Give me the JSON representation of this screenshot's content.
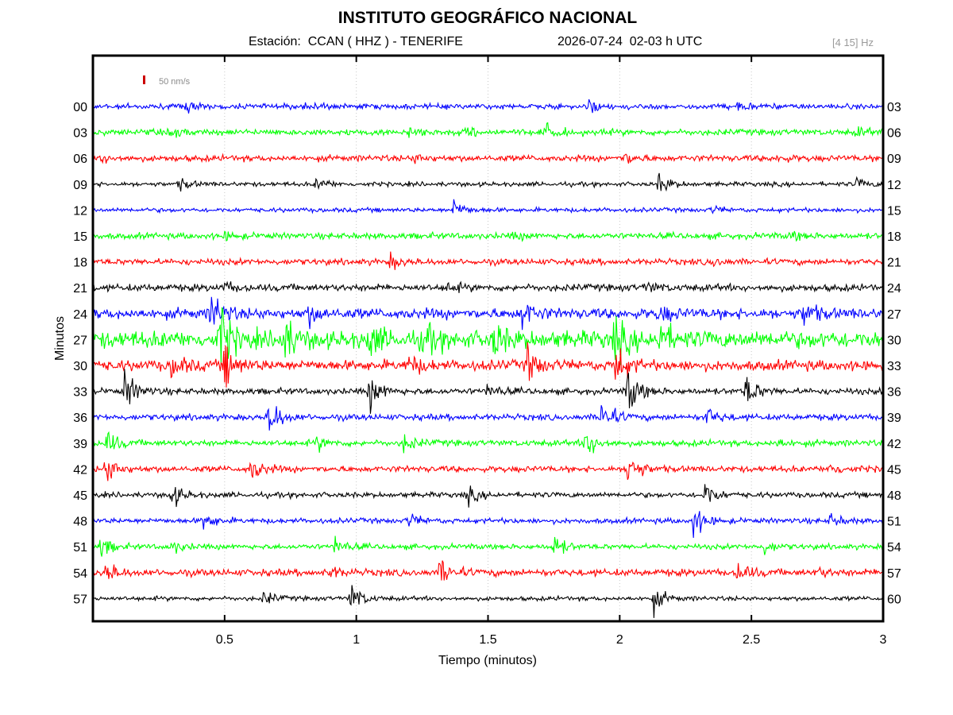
{
  "header": {
    "title": "INSTITUTO GEOGRÁFICO NACIONAL",
    "station": "Estación:  CCAN ( HHZ ) - TENERIFE",
    "datetime": "2026-07-24  02-03 h UTC",
    "band": "[4 15] Hz"
  },
  "chart_data": {
    "type": "line",
    "title": "INSTITUTO GEOGRÁFICO NACIONAL",
    "xlabel": "Tiempo (minutos)",
    "ylabel": "Minutos",
    "xlim": [
      0,
      3
    ],
    "x_ticks": [
      "0.5",
      "1",
      "1.5",
      "2",
      "2.5",
      "3"
    ],
    "x_tick_values": [
      0.5,
      1,
      1.5,
      2,
      2.5,
      3
    ],
    "scale_label": "50 nm/s",
    "scale_color": "#cc0000",
    "grid": "vertical dotted at x ticks",
    "trace_colors": [
      "#0000ff",
      "#00ff00",
      "#ff0000",
      "#000000"
    ],
    "rows": [
      {
        "left": "00",
        "right": "03",
        "noise": 3,
        "events": [
          [
            0.35,
            7
          ],
          [
            0.8,
            6
          ],
          [
            1.88,
            7
          ],
          [
            2.45,
            5
          ]
        ]
      },
      {
        "left": "03",
        "right": "06",
        "noise": 3.5,
        "events": [
          [
            0.3,
            5
          ],
          [
            1.2,
            5
          ],
          [
            1.42,
            6
          ],
          [
            1.72,
            10
          ],
          [
            2.9,
            5
          ]
        ]
      },
      {
        "left": "06",
        "right": "09",
        "noise": 3.5,
        "events": [
          [
            0.03,
            5
          ],
          [
            1.22,
            5
          ],
          [
            2.02,
            7
          ],
          [
            2.6,
            4
          ]
        ]
      },
      {
        "left": "09",
        "right": "12",
        "noise": 2.5,
        "events": [
          [
            0.33,
            7
          ],
          [
            0.85,
            8
          ],
          [
            2.15,
            12
          ],
          [
            2.9,
            6
          ]
        ]
      },
      {
        "left": "12",
        "right": "15",
        "noise": 2.5,
        "events": [
          [
            1.37,
            12
          ],
          [
            2.35,
            4
          ]
        ]
      },
      {
        "left": "15",
        "right": "18",
        "noise": 3.5,
        "events": [
          [
            0.5,
            4
          ],
          [
            1.6,
            4
          ],
          [
            2.65,
            5
          ]
        ]
      },
      {
        "left": "18",
        "right": "21",
        "noise": 3.5,
        "events": [
          [
            1.13,
            8
          ],
          [
            2.35,
            4
          ]
        ]
      },
      {
        "left": "21",
        "right": "24",
        "noise": 4,
        "events": [
          [
            0.5,
            6
          ],
          [
            1.35,
            5
          ],
          [
            2.1,
            6
          ]
        ]
      },
      {
        "left": "24",
        "right": "27",
        "noise": 6,
        "events": [
          [
            0.45,
            25
          ],
          [
            0.82,
            12
          ],
          [
            1.63,
            18
          ],
          [
            2.15,
            10
          ],
          [
            2.7,
            15
          ]
        ]
      },
      {
        "left": "27",
        "right": "30",
        "noise": 10,
        "events": [
          [
            0.48,
            40
          ],
          [
            0.72,
            30
          ],
          [
            1.05,
            20
          ],
          [
            1.25,
            20
          ],
          [
            1.52,
            20
          ],
          [
            1.98,
            25
          ],
          [
            2.15,
            18
          ]
        ]
      },
      {
        "left": "30",
        "right": "33",
        "noise": 6,
        "events": [
          [
            0.5,
            25
          ],
          [
            0.3,
            15
          ],
          [
            1.2,
            12
          ],
          [
            1.65,
            20
          ],
          [
            1.98,
            30
          ]
        ]
      },
      {
        "left": "33",
        "right": "36",
        "noise": 3.5,
        "events": [
          [
            0.12,
            25
          ],
          [
            1.05,
            22
          ],
          [
            2.03,
            30
          ],
          [
            2.48,
            20
          ],
          [
            1.5,
            8
          ]
        ]
      },
      {
        "left": "36",
        "right": "39",
        "noise": 3.5,
        "events": [
          [
            0.67,
            25
          ],
          [
            1.93,
            25
          ],
          [
            2.33,
            12
          ]
        ]
      },
      {
        "left": "39",
        "right": "42",
        "noise": 3.5,
        "events": [
          [
            0.05,
            15
          ],
          [
            0.85,
            8
          ],
          [
            1.18,
            10
          ],
          [
            1.87,
            20
          ],
          [
            2.6,
            5
          ]
        ]
      },
      {
        "left": "42",
        "right": "45",
        "noise": 3.5,
        "events": [
          [
            0.05,
            18
          ],
          [
            0.6,
            15
          ],
          [
            2.03,
            25
          ],
          [
            2.8,
            8
          ]
        ]
      },
      {
        "left": "45",
        "right": "48",
        "noise": 3,
        "events": [
          [
            0.3,
            14
          ],
          [
            1.42,
            10
          ],
          [
            2.32,
            18
          ]
        ]
      },
      {
        "left": "48",
        "right": "51",
        "noise": 3,
        "events": [
          [
            0.42,
            12
          ],
          [
            1.2,
            8
          ],
          [
            2.28,
            20
          ],
          [
            2.8,
            8
          ]
        ]
      },
      {
        "left": "51",
        "right": "54",
        "noise": 3,
        "events": [
          [
            0.03,
            12
          ],
          [
            0.3,
            8
          ],
          [
            0.92,
            10
          ],
          [
            1.75,
            14
          ],
          [
            2.55,
            8
          ]
        ]
      },
      {
        "left": "54",
        "right": "57",
        "noise": 4,
        "events": [
          [
            0.05,
            12
          ],
          [
            0.9,
            6
          ],
          [
            1.32,
            18
          ],
          [
            2.45,
            12
          ],
          [
            2.75,
            5
          ]
        ]
      },
      {
        "left": "57",
        "right": "60",
        "noise": 2.5,
        "events": [
          [
            0.65,
            8
          ],
          [
            0.98,
            18
          ],
          [
            2.13,
            14
          ]
        ]
      }
    ]
  }
}
